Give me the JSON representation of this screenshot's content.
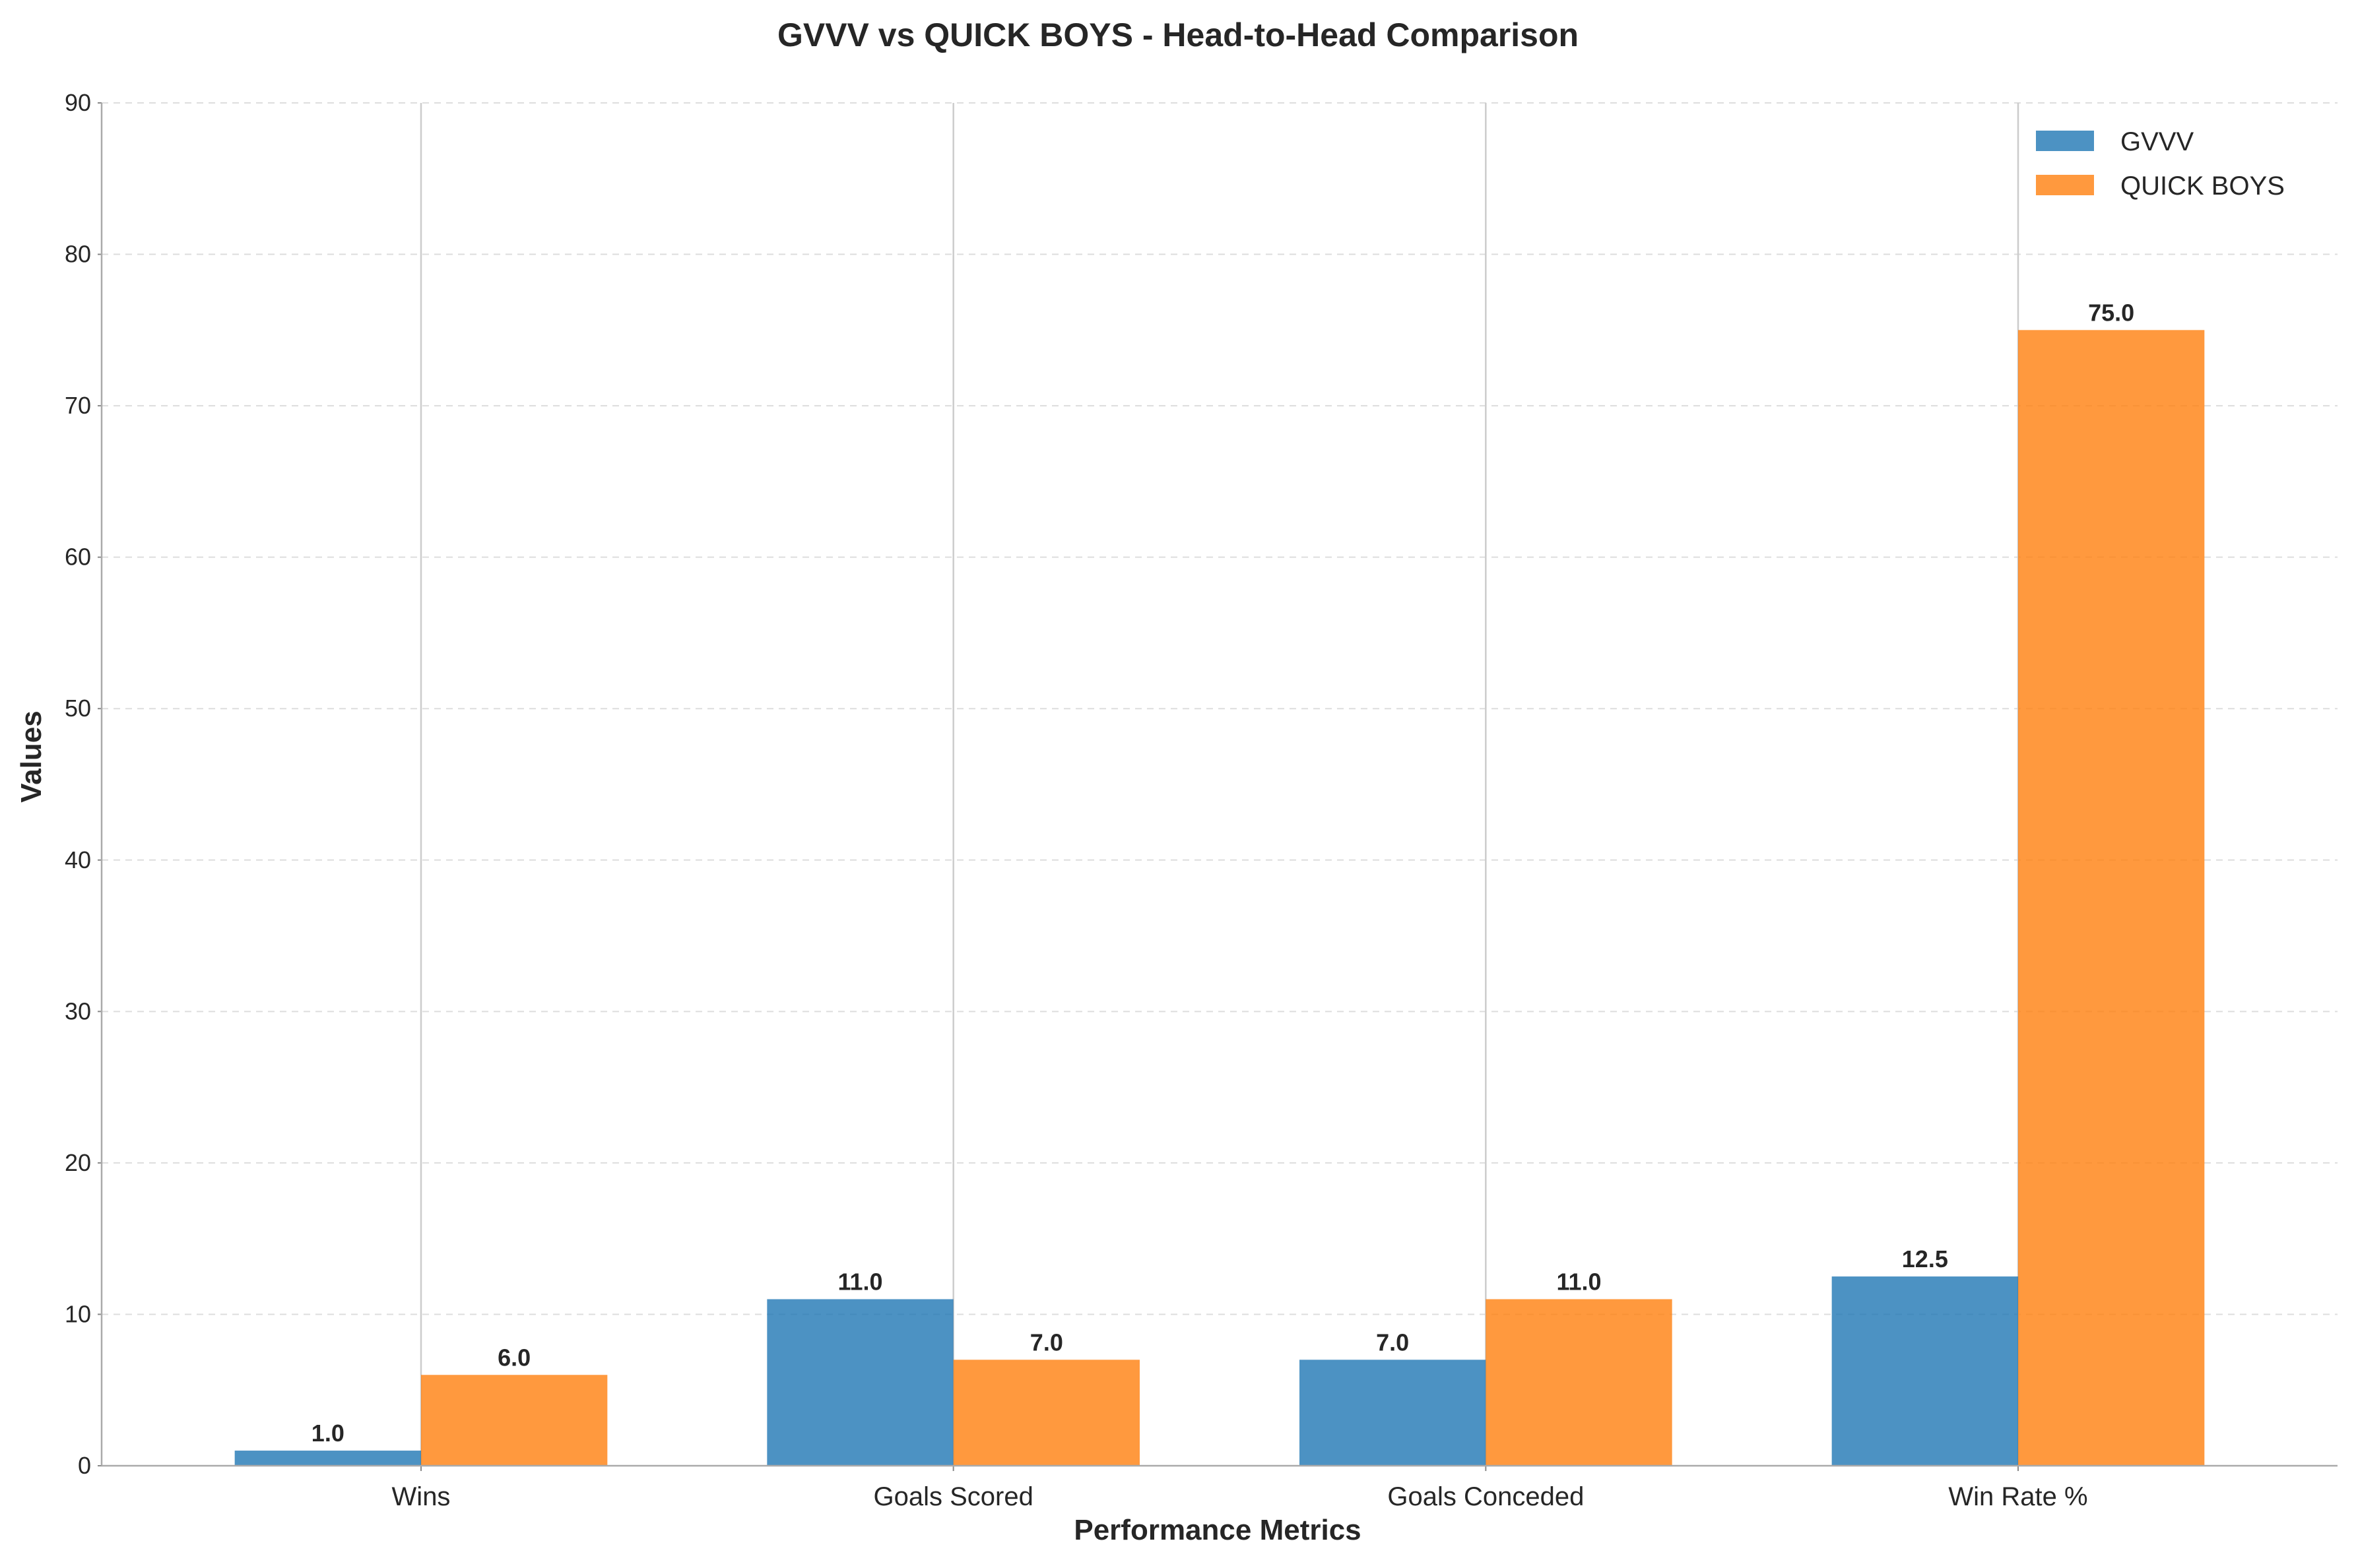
{
  "chart_data": {
    "type": "bar",
    "title": "GVVV vs QUICK BOYS - Head-to-Head Comparison",
    "xlabel": "Performance Metrics",
    "ylabel": "Values",
    "categories": [
      "Wins",
      "Goals Scored",
      "Goals Conceded",
      "Win Rate %"
    ],
    "series": [
      {
        "name": "GVVV",
        "color": "#1f77b4",
        "values": [
          1.0,
          11.0,
          7.0,
          12.5
        ]
      },
      {
        "name": "QUICK BOYS",
        "color": "#ff7f0e",
        "values": [
          6.0,
          7.0,
          11.0,
          75.0
        ]
      }
    ],
    "ylim": [
      0,
      90
    ],
    "yticks": [
      0,
      10,
      20,
      30,
      40,
      50,
      60,
      70,
      80,
      90
    ],
    "grid": true,
    "legend_position": "top-right",
    "value_label_format": "1 decimal"
  }
}
